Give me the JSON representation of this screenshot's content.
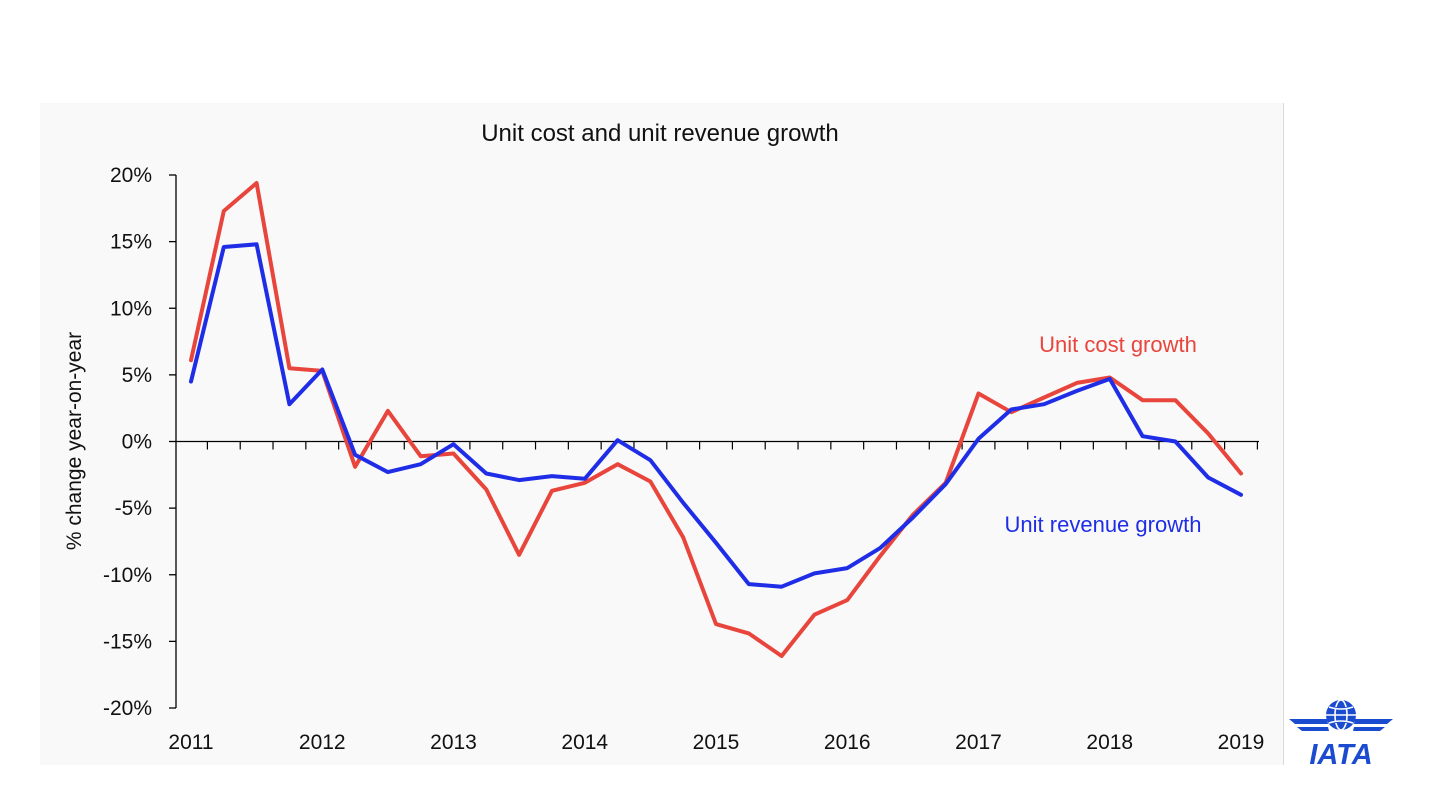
{
  "chart_data": {
    "type": "line",
    "title": "Unit cost and unit revenue growth",
    "ylabel": "% change year-on-year",
    "xlabel": "",
    "ylim": [
      -20,
      20
    ],
    "xlim": [
      2011.0,
      2019.125
    ],
    "ytick_values": [
      20,
      15,
      10,
      5,
      0,
      -5,
      -10,
      -15,
      -20
    ],
    "ytick_labels": [
      "20%",
      "15%",
      "10%",
      "5%",
      "0%",
      "-5%",
      "-10%",
      "-15%",
      "-20%"
    ],
    "xtick_values": [
      2011,
      2012,
      2013,
      2014,
      2015,
      2016,
      2017,
      2018,
      2019
    ],
    "xtick_labels": [
      "2011",
      "2012",
      "2013",
      "2014",
      "2015",
      "2016",
      "2017",
      "2018",
      "2019"
    ],
    "grid": false,
    "x": [
      2011.0,
      2011.25,
      2011.5,
      2011.75,
      2012.0,
      2012.25,
      2012.5,
      2012.75,
      2013.0,
      2013.25,
      2013.5,
      2013.75,
      2014.0,
      2014.25,
      2014.5,
      2014.75,
      2015.0,
      2015.25,
      2015.5,
      2015.75,
      2016.0,
      2016.25,
      2016.5,
      2016.75,
      2017.0,
      2017.25,
      2017.5,
      2017.75,
      2018.0,
      2018.25,
      2018.5,
      2018.75,
      2019.0
    ],
    "series": [
      {
        "name": "Unit cost growth",
        "color": "#e8453c",
        "values": [
          6.1,
          17.3,
          19.4,
          5.5,
          5.3,
          -1.9,
          2.3,
          -1.1,
          -0.9,
          -3.6,
          -8.5,
          -3.7,
          -3.1,
          -1.7,
          -3.0,
          -7.2,
          -13.7,
          -14.4,
          -16.1,
          -13.0,
          -11.9,
          -8.6,
          -5.5,
          -3.1,
          3.6,
          2.2,
          3.3,
          4.4,
          4.8,
          3.1,
          3.1,
          0.6,
          -2.4
        ]
      },
      {
        "name": "Unit revenue growth",
        "color": "#1f2ee6",
        "values": [
          4.5,
          14.6,
          14.8,
          2.8,
          5.4,
          -1.0,
          -2.3,
          -1.7,
          -0.2,
          -2.4,
          -2.9,
          -2.6,
          -2.8,
          0.1,
          -1.4,
          -4.6,
          -7.6,
          -10.7,
          -10.9,
          -9.9,
          -9.5,
          -8.0,
          -5.7,
          -3.2,
          0.2,
          2.4,
          2.8,
          3.8,
          4.7,
          0.4,
          0.0,
          -2.7,
          -4.0
        ]
      }
    ],
    "annotations": [
      {
        "text": "Unit cost growth",
        "color": "#e8453c"
      },
      {
        "text": "Unit revenue growth",
        "color": "#1f2ee6"
      }
    ]
  },
  "logo": {
    "text": "IATA",
    "color": "#1b4ccf"
  }
}
